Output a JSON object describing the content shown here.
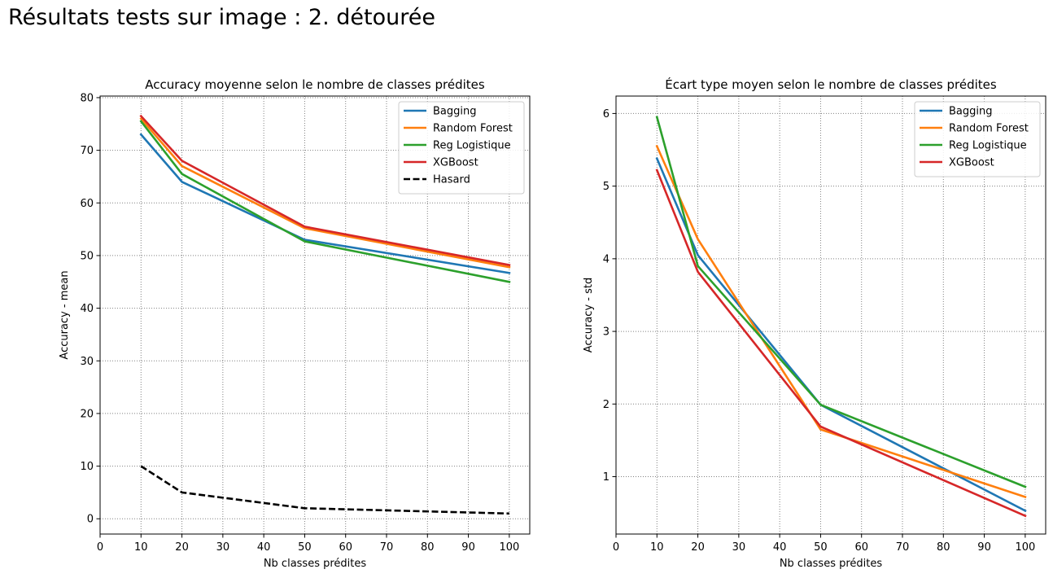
{
  "suptitle": "Résultats tests sur image : 2. détourée",
  "colors": {
    "Bagging": "#1f77b4",
    "Random Forest": "#ff7f0e",
    "Reg Logistique": "#2ca02c",
    "XGBoost": "#d62728",
    "Hasard": "#000000",
    "grid": "#808080"
  },
  "chart_data": [
    {
      "type": "line",
      "title": "Accuracy moyenne selon le nombre de classes prédites",
      "xlabel": "Nb classes prédites",
      "ylabel": "Accuracy - mean",
      "xlim": [
        0,
        105
      ],
      "ylim": [
        -2.9,
        80.3
      ],
      "xticks": [
        0,
        10,
        20,
        30,
        40,
        50,
        60,
        70,
        80,
        90,
        100
      ],
      "yticks": [
        0,
        10,
        20,
        30,
        40,
        50,
        60,
        70,
        80
      ],
      "grid": true,
      "legend_position": "top-right",
      "x": [
        10,
        20,
        50,
        100
      ],
      "series": [
        {
          "name": "Bagging",
          "values": [
            73.0,
            64.0,
            53.0,
            46.7
          ],
          "style": "solid"
        },
        {
          "name": "Random Forest",
          "values": [
            76.0,
            67.0,
            55.2,
            47.8
          ],
          "style": "solid"
        },
        {
          "name": "Reg Logistique",
          "values": [
            75.5,
            65.5,
            52.7,
            45.0
          ],
          "style": "solid"
        },
        {
          "name": "XGBoost",
          "values": [
            76.5,
            68.0,
            55.5,
            48.2
          ],
          "style": "solid"
        },
        {
          "name": "Hasard",
          "values": [
            10.0,
            5.0,
            2.0,
            1.0
          ],
          "style": "dashed"
        }
      ]
    },
    {
      "type": "line",
      "title": "Écart type moyen selon le nombre de classes prédites",
      "xlabel": "Nb classes prédites",
      "ylabel": "Accuracy - std",
      "xlim": [
        0,
        105
      ],
      "ylim": [
        0.21,
        6.24
      ],
      "xticks": [
        0,
        10,
        20,
        30,
        40,
        50,
        60,
        70,
        80,
        90,
        100
      ],
      "yticks": [
        1,
        2,
        3,
        4,
        5,
        6
      ],
      "grid": true,
      "legend_position": "top-right",
      "x": [
        10,
        20,
        50,
        100
      ],
      "series": [
        {
          "name": "Bagging",
          "values": [
            5.38,
            4.05,
            1.99,
            0.53
          ],
          "style": "solid"
        },
        {
          "name": "Random Forest",
          "values": [
            5.55,
            4.27,
            1.65,
            0.72
          ],
          "style": "solid"
        },
        {
          "name": "Reg Logistique",
          "values": [
            5.95,
            3.9,
            1.99,
            0.86
          ],
          "style": "solid"
        },
        {
          "name": "XGBoost",
          "values": [
            5.22,
            3.82,
            1.69,
            0.46
          ],
          "style": "solid"
        }
      ]
    }
  ]
}
